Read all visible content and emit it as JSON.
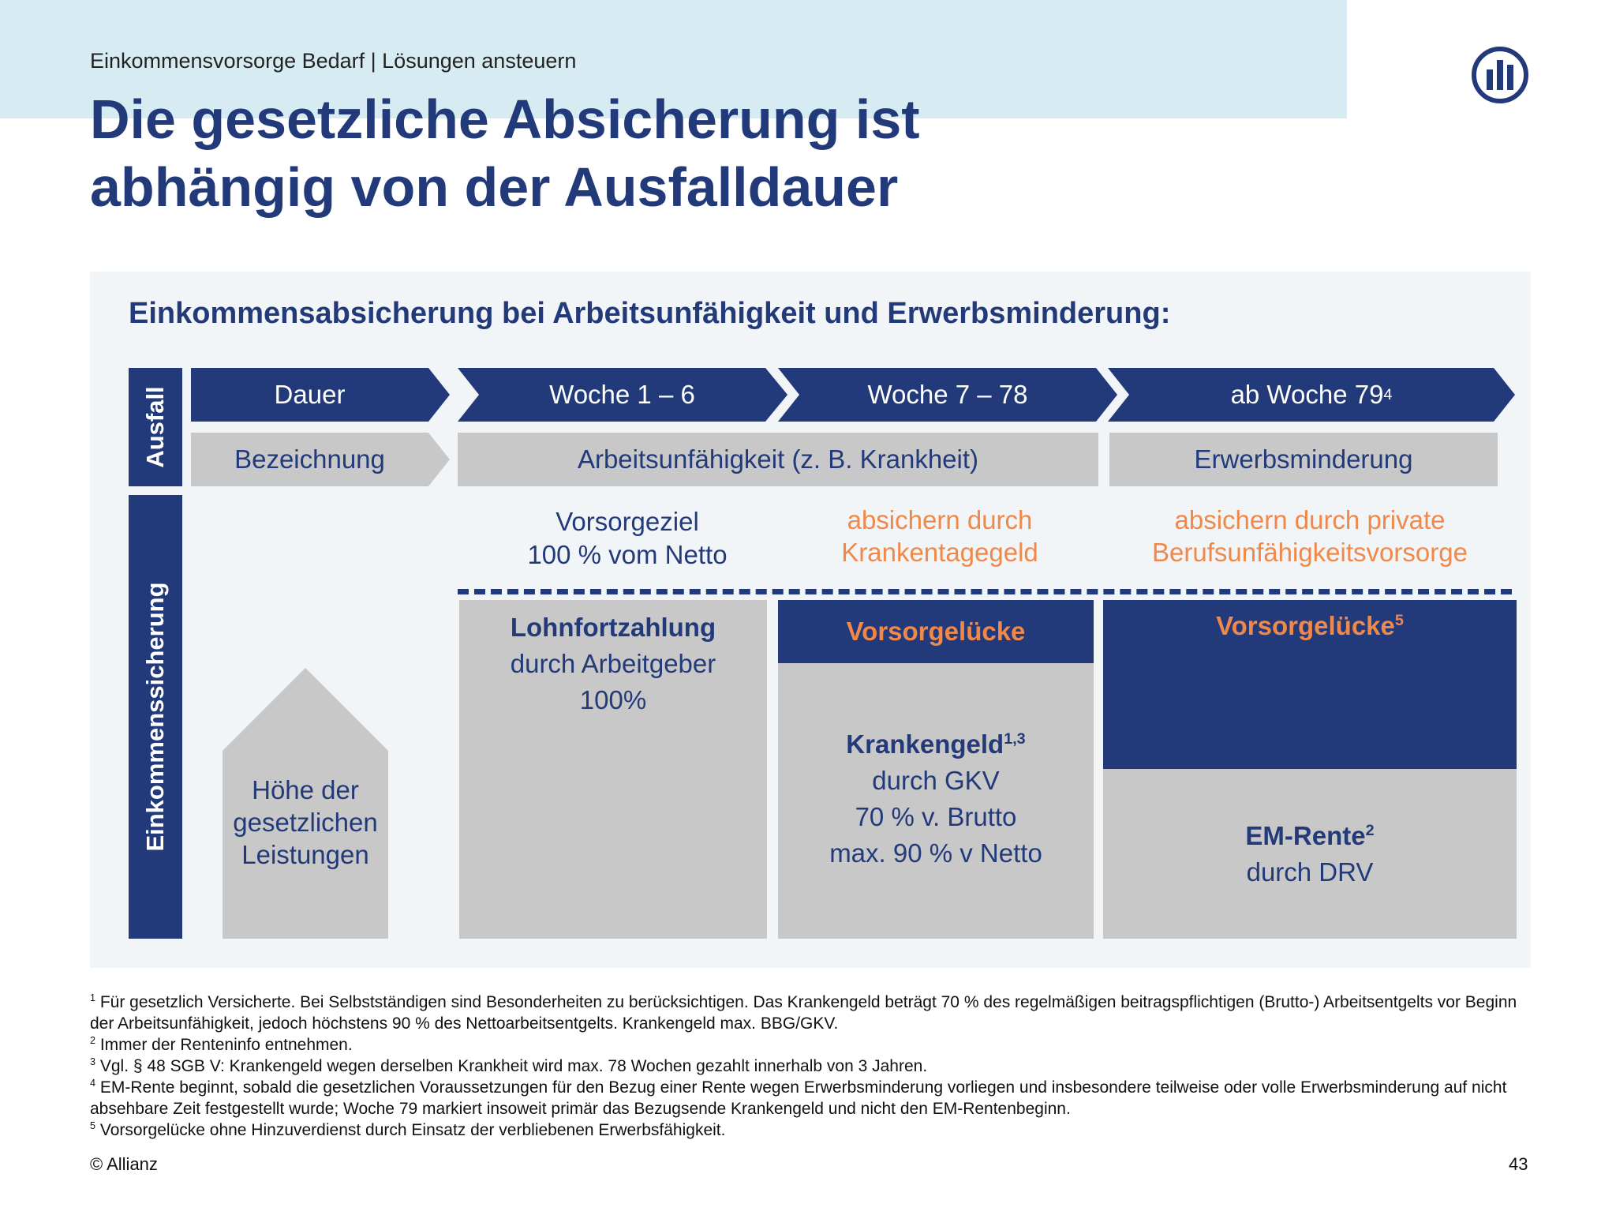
{
  "header": {
    "breadcrumb": "Einkommensvorsorge Bedarf | Lösungen ansteuern",
    "title_line1": "Die gesetzliche Absicherung ist",
    "title_line2": "abhängig von der Ausfalldauer",
    "logo_icon": "allianz-logo-icon"
  },
  "panel": {
    "subtitle": "Einkommensabsicherung bei Arbeitsunfähigkeit und Erwerbsminderung:",
    "side_labels": {
      "top": "Ausfall",
      "bottom": "Einkommenssicherung"
    },
    "duration_row": {
      "label": "Dauer",
      "phase1": "Woche 1 – 6",
      "phase2": "Woche 7 – 78",
      "phase3": "ab Woche 79",
      "phase3_sup": "4"
    },
    "designation_row": {
      "label": "Bezeichnung",
      "incapacity": "Arbeitsunfähigkeit (z. B. Krankheit)",
      "reduced_earning": "Erwerbsminderung"
    },
    "goals": {
      "goal_line1": "Vorsorgeziel",
      "goal_line2": "100 % vom Netto",
      "sickpay_line1": "absichern durch",
      "sickpay_line2": "Krankentagegeld",
      "private_line1": "absichern durch private",
      "private_line2": "Berufsunfähigkeitsvorsorge"
    },
    "house": {
      "line1": "Höhe der",
      "line2": "gesetzlichen",
      "line3": "Leistungen"
    },
    "col1": {
      "title": "Lohnfortzahlung",
      "line2": "durch Arbeitgeber",
      "line3": "100%"
    },
    "col2": {
      "gap": "Vorsorgelücke",
      "title": "Krankengeld",
      "title_sup": "1,3",
      "line2": "durch GKV",
      "line3": "70 % v. Brutto",
      "line4": "max. 90 % v Netto"
    },
    "col3": {
      "gap": "Vorsorgelücke",
      "gap_sup": "5",
      "title": "EM-Rente",
      "title_sup": "2",
      "line2": "durch DRV"
    }
  },
  "footnotes": [
    {
      "num": "1",
      "text": " Für gesetzlich Versicherte. Bei Selbstständigen sind Besonderheiten zu berücksichtigen. Das Krankengeld beträgt 70 % des regelmäßigen beitragspflichtigen (Brutto-) Arbeitsentgelts vor Beginn der Arbeitsunfähigkeit, jedoch höchstens 90 % des Nettoarbeitsentgelts. Krankengeld max. BBG/GKV."
    },
    {
      "num": "2",
      "text": "  Immer der Renteninfo entnehmen."
    },
    {
      "num": "3",
      "text": " Vgl. § 48 SGB V: Krankengeld wegen derselben Krankheit wird max. 78 Wochen gezahlt innerhalb von 3 Jahren."
    },
    {
      "num": "4",
      "text": " EM-Rente beginnt, sobald die gesetzlichen Voraussetzungen für den Bezug einer Rente wegen Erwerbsminderung vorliegen und insbesondere teilweise oder volle Erwerbsminderung auf nicht absehbare Zeit festgestellt wurde; Woche 79 markiert insoweit primär das Bezugsende Krankengeld und nicht den EM-Rentenbeginn."
    },
    {
      "num": "5",
      "text": " Vorsorgelücke ohne Hinzuverdienst durch Einsatz der verbliebenen Erwerbsfähigkeit."
    }
  ],
  "footer": {
    "copyright": "© Allianz",
    "page": "43"
  },
  "colors": {
    "navy": "#233a7a",
    "orange": "#f0884a",
    "gray": "#c8c8c8",
    "header_band": "#d6ecf2",
    "panel": "#f2f5f7"
  }
}
